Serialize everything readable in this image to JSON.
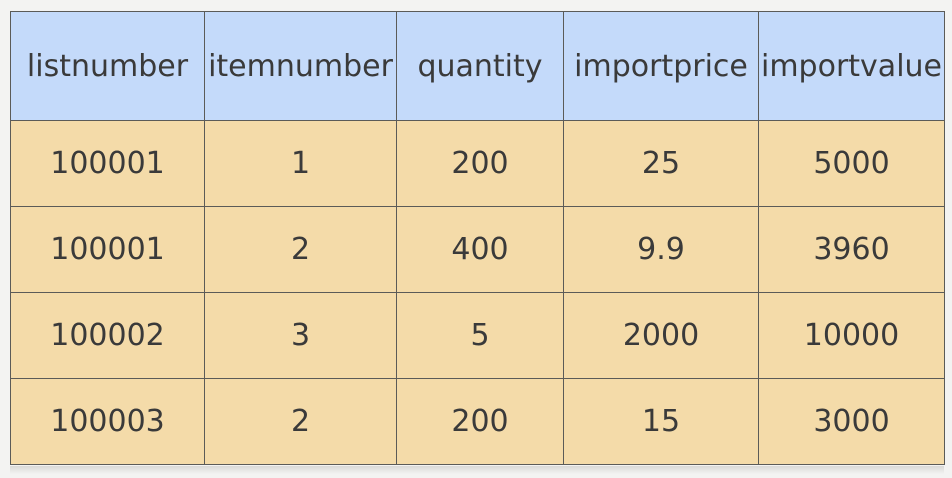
{
  "table": {
    "headers": [
      "listnumber",
      "itemnumber",
      "quantity",
      "importprice",
      "importvalue"
    ],
    "rows": [
      [
        "100001",
        "1",
        "200",
        "25",
        "5000"
      ],
      [
        "100001",
        "2",
        "400",
        "9.9",
        "3960"
      ],
      [
        "100002",
        "3",
        "5",
        "2000",
        "10000"
      ],
      [
        "100003",
        "2",
        "200",
        "15",
        "3000"
      ]
    ]
  },
  "colors": {
    "header_bg": "#c4dafa",
    "body_bg": "#f4dba9",
    "border": "#5b5b58"
  }
}
